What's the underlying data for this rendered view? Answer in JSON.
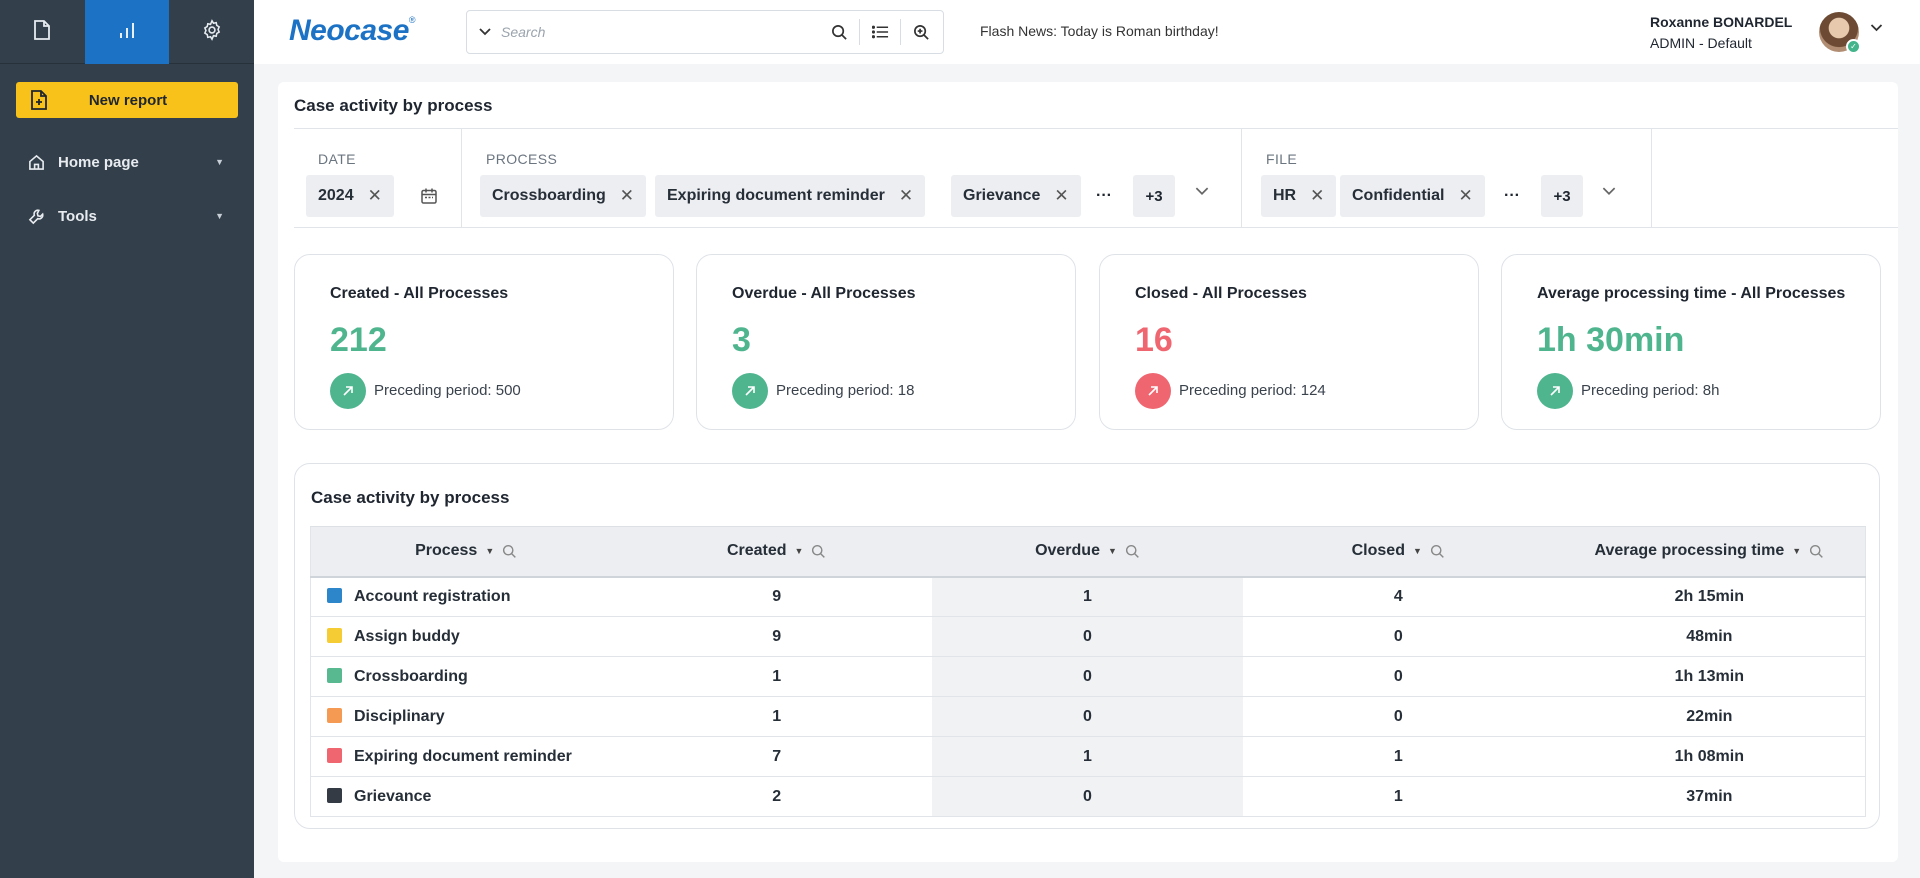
{
  "sidebar": {
    "tabs": [
      {
        "name": "document-icon",
        "active": false
      },
      {
        "name": "chart-icon",
        "active": true
      },
      {
        "name": "gear-icon",
        "active": false
      }
    ],
    "new_report_label": "New report",
    "nav": [
      {
        "label": "Home page",
        "icon": "home-icon"
      },
      {
        "label": "Tools",
        "icon": "wrench-icon"
      }
    ]
  },
  "header": {
    "logo": "Neocase",
    "logo_mark": "®",
    "search_placeholder": "Search",
    "flash_news": "Flash News: Today is Roman birthday!",
    "user_name": "Roxanne  BONARDEL",
    "user_role": "ADMIN - Default"
  },
  "page": {
    "title": "Case activity by process",
    "filters": {
      "date": {
        "label": "DATE",
        "chips": [
          "2024"
        ]
      },
      "process": {
        "label": "PROCESS",
        "chips": [
          "Crossboarding",
          "Expiring document reminder",
          "Grievance"
        ],
        "more": "···",
        "extra": "+3"
      },
      "file": {
        "label": "FILE",
        "chips": [
          "HR",
          "Confidential"
        ],
        "more": "···",
        "extra": "+3"
      }
    },
    "kpis": [
      {
        "title": "Created - All Processes",
        "value": "212",
        "preceding": "Preceding period: 500",
        "color": "#4fb58f",
        "trend": "up"
      },
      {
        "title": "Overdue - All Processes",
        "value": "3",
        "preceding": "Preceding period: 18",
        "color": "#4fb58f",
        "trend": "up"
      },
      {
        "title": "Closed - All Processes",
        "value": "16",
        "preceding": "Preceding period: 124",
        "color": "#ef6670",
        "trend": "up"
      },
      {
        "title": "Average processing time - All Processes",
        "value": "1h 30min",
        "preceding": "Preceding period: 8h",
        "color": "#4fb58f",
        "trend": "up"
      }
    ],
    "table": {
      "title": "Case activity by process",
      "columns": [
        "Process",
        "Created",
        "Overdue",
        "Closed",
        "Average processing time"
      ],
      "rows": [
        {
          "process": "Account registration",
          "color": "#2d86c9",
          "created": "9",
          "overdue": "1",
          "closed": "4",
          "avg": "2h 15min"
        },
        {
          "process": "Assign buddy",
          "color": "#f5cc34",
          "created": "9",
          "overdue": "0",
          "closed": "0",
          "avg": "48min"
        },
        {
          "process": "Crossboarding",
          "color": "#58b990",
          "created": "1",
          "overdue": "0",
          "closed": "0",
          "avg": "1h 13min"
        },
        {
          "process": "Disciplinary",
          "color": "#f59a52",
          "created": "1",
          "overdue": "0",
          "closed": "0",
          "avg": "22min"
        },
        {
          "process": "Expiring document reminder",
          "color": "#ef6670",
          "created": "7",
          "overdue": "1",
          "closed": "1",
          "avg": "1h 08min"
        },
        {
          "process": "Grievance",
          "color": "#343b45",
          "created": "2",
          "overdue": "0",
          "closed": "1",
          "avg": "37min"
        }
      ]
    }
  }
}
